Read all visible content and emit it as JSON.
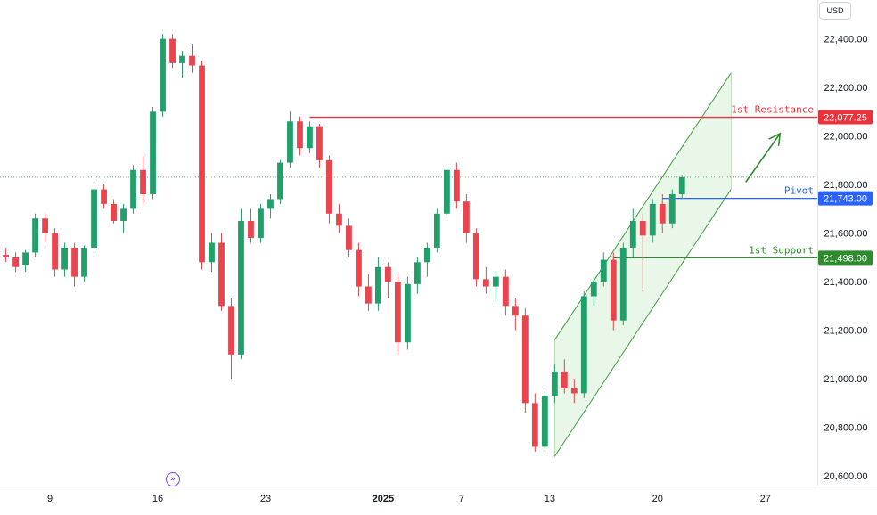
{
  "currency": "USD",
  "event_marker": "»",
  "colors": {
    "up": "#22a06b",
    "down": "#e8454f",
    "resistance": "#e8333c",
    "pivot": "#2962ff",
    "support": "#2e8b2e",
    "channel_fill": "#e3f5e3",
    "channel_line": "#3e9c3e",
    "arrow": "#2e8b2e",
    "dotted": "#2e8b2e"
  },
  "chart_data": {
    "type": "candlestick",
    "title": "",
    "xlabel": "",
    "ylabel": "USD",
    "ylim": [
      20560,
      22560
    ],
    "x_range": [
      -0.6,
      82.8
    ],
    "y_ticks": [
      20600,
      20800,
      21000,
      21200,
      21400,
      21600,
      21800,
      22000,
      22200,
      22400
    ],
    "y_tick_labels": [
      "20,600.00",
      "20,800.00",
      "21,000.00",
      "21,200.00",
      "21,400.00",
      "21,600.00",
      "21,800.00",
      "22,000.00",
      "22,200.00",
      "22,400.00"
    ],
    "x_ticks": [
      {
        "index": 4.5,
        "label": "9",
        "bold": false
      },
      {
        "index": 15.5,
        "label": "16",
        "bold": false
      },
      {
        "index": 26.5,
        "label": "23",
        "bold": false
      },
      {
        "index": 38.5,
        "label": "2025",
        "bold": true
      },
      {
        "index": 46.5,
        "label": "7",
        "bold": false
      },
      {
        "index": 55.5,
        "label": "13",
        "bold": false
      },
      {
        "index": 66.5,
        "label": "20",
        "bold": false
      },
      {
        "index": 77.5,
        "label": "27",
        "bold": false
      }
    ],
    "last_price_dotted": 21830,
    "levels": [
      {
        "name": "1st Resistance",
        "value": 22077.25,
        "label": "22,077.25",
        "color_key": "resistance",
        "start_index": 31
      },
      {
        "name": "Pivot",
        "value": 21743.0,
        "label": "21,743.00",
        "color_key": "pivot",
        "start_index": 67
      },
      {
        "name": "1st Support",
        "value": 21498.0,
        "label": "21,498.00",
        "color_key": "support",
        "start_index": 62
      }
    ],
    "channel": {
      "lower_start": [
        56,
        20680
      ],
      "lower_end": [
        74,
        21780
      ],
      "upper_start": [
        56,
        21160
      ],
      "upper_end": [
        74,
        22260
      ]
    },
    "arrow": {
      "from": [
        75.5,
        21810
      ],
      "to": [
        79,
        22010
      ]
    },
    "candles": [
      [
        21510,
        21540,
        21480,
        21500
      ],
      [
        21500,
        21520,
        21440,
        21460
      ],
      [
        21470,
        21530,
        21440,
        21520
      ],
      [
        21520,
        21680,
        21500,
        21660
      ],
      [
        21660,
        21680,
        21560,
        21600
      ],
      [
        21600,
        21620,
        21420,
        21450
      ],
      [
        21450,
        21560,
        21420,
        21540
      ],
      [
        21540,
        21560,
        21380,
        21420
      ],
      [
        21420,
        21550,
        21400,
        21540
      ],
      [
        21540,
        21800,
        21530,
        21780
      ],
      [
        21780,
        21800,
        21700,
        21720
      ],
      [
        21720,
        21740,
        21640,
        21650
      ],
      [
        21650,
        21720,
        21600,
        21700
      ],
      [
        21700,
        21880,
        21680,
        21860
      ],
      [
        21860,
        21920,
        21720,
        21760
      ],
      [
        21760,
        22120,
        21740,
        22100
      ],
      [
        22100,
        22420,
        22080,
        22400
      ],
      [
        22400,
        22420,
        22280,
        22300
      ],
      [
        22300,
        22350,
        22240,
        22330
      ],
      [
        22330,
        22380,
        22260,
        22290
      ],
      [
        22290,
        22310,
        21450,
        21480
      ],
      [
        21480,
        21600,
        21440,
        21560
      ],
      [
        21560,
        21600,
        21280,
        21300
      ],
      [
        21300,
        21330,
        21000,
        21100
      ],
      [
        21100,
        21700,
        21080,
        21650
      ],
      [
        21650,
        21700,
        21560,
        21580
      ],
      [
        21580,
        21720,
        21560,
        21700
      ],
      [
        21700,
        21760,
        21660,
        21740
      ],
      [
        21740,
        21900,
        21720,
        21890
      ],
      [
        21890,
        22100,
        21870,
        22060
      ],
      [
        22060,
        22080,
        21920,
        21950
      ],
      [
        21950,
        22060,
        21930,
        22040
      ],
      [
        22040,
        22050,
        21870,
        21900
      ],
      [
        21900,
        21920,
        21640,
        21680
      ],
      [
        21680,
        21720,
        21600,
        21630
      ],
      [
        21630,
        21660,
        21500,
        21530
      ],
      [
        21530,
        21560,
        21340,
        21380
      ],
      [
        21380,
        21430,
        21280,
        21310
      ],
      [
        21310,
        21500,
        21280,
        21460
      ],
      [
        21460,
        21480,
        21330,
        21400
      ],
      [
        21400,
        21430,
        21100,
        21150
      ],
      [
        21150,
        21420,
        21120,
        21390
      ],
      [
        21390,
        21500,
        21350,
        21480
      ],
      [
        21480,
        21560,
        21420,
        21540
      ],
      [
        21540,
        21700,
        21520,
        21680
      ],
      [
        21680,
        21880,
        21660,
        21860
      ],
      [
        21860,
        21890,
        21700,
        21730
      ],
      [
        21730,
        21760,
        21560,
        21600
      ],
      [
        21600,
        21620,
        21380,
        21410
      ],
      [
        21410,
        21460,
        21350,
        21380
      ],
      [
        21380,
        21440,
        21320,
        21420
      ],
      [
        21420,
        21450,
        21260,
        21300
      ],
      [
        21300,
        21330,
        21200,
        21260
      ],
      [
        21260,
        21290,
        20860,
        20900
      ],
      [
        20900,
        20940,
        20700,
        20720
      ],
      [
        20720,
        20950,
        20700,
        20930
      ],
      [
        20930,
        21060,
        20900,
        21030
      ],
      [
        21030,
        21080,
        20940,
        20960
      ],
      [
        20960,
        21000,
        20900,
        20940
      ],
      [
        20940,
        21360,
        20920,
        21340
      ],
      [
        21340,
        21420,
        21300,
        21400
      ],
      [
        21400,
        21520,
        21380,
        21490
      ],
      [
        21490,
        21520,
        21200,
        21240
      ],
      [
        21240,
        21560,
        21220,
        21540
      ],
      [
        21540,
        21700,
        21500,
        21650
      ],
      [
        21650,
        21680,
        21360,
        21590
      ],
      [
        21590,
        21740,
        21560,
        21720
      ],
      [
        21720,
        21760,
        21600,
        21640
      ],
      [
        21640,
        21780,
        21620,
        21760
      ],
      [
        21760,
        21840,
        21740,
        21830
      ]
    ]
  }
}
